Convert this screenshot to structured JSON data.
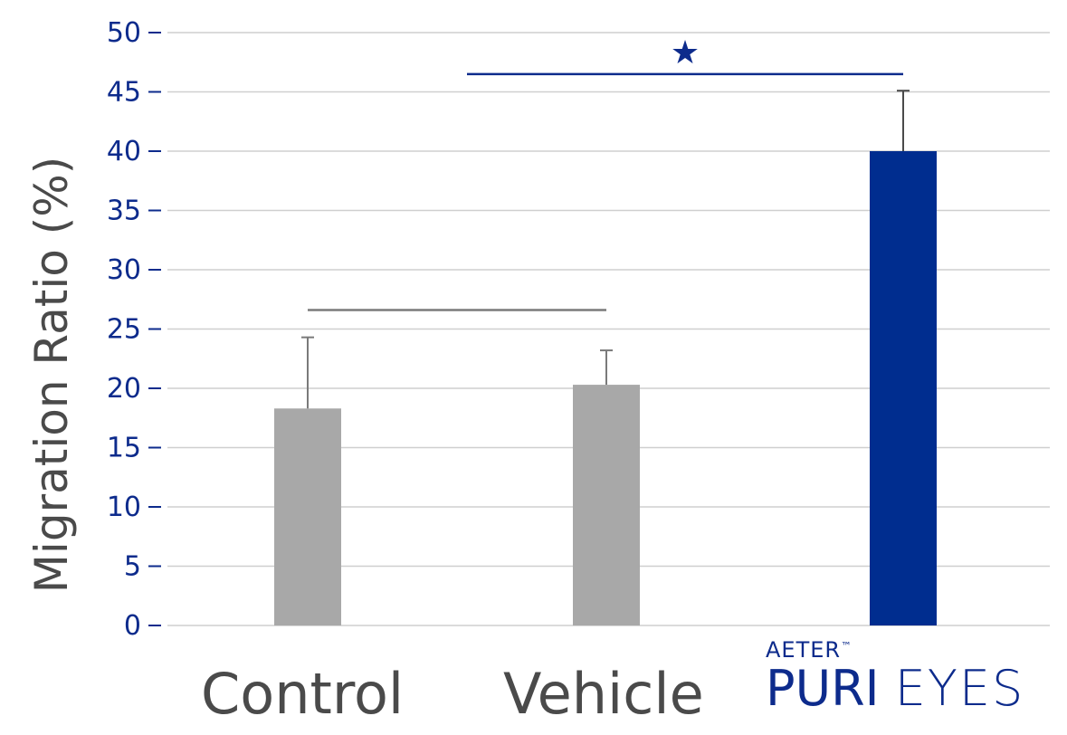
{
  "chart_data": {
    "type": "bar",
    "categories": [
      "Control",
      "Vehicle",
      "AETER PURI EYES"
    ],
    "values": [
      18.3,
      20.3,
      40.0
    ],
    "error_upper": [
      24.3,
      23.2,
      45.1
    ],
    "ylabel": "Migration Ratio (%)",
    "xlabel": "",
    "title": "",
    "ylim": [
      0,
      50
    ],
    "yticks": [
      0,
      5,
      10,
      15,
      20,
      25,
      30,
      35,
      40,
      45,
      50
    ],
    "grid": true,
    "significance": [
      {
        "from": 0,
        "to": 1,
        "marker": "",
        "color": "#7a7a7a",
        "y": 26.6
      },
      {
        "from": 1,
        "to": 2,
        "marker": "★",
        "color": "#0d2b8c",
        "y": 46.5
      }
    ],
    "colors": {
      "bars": [
        "#a8a8a8",
        "#a8a8a8",
        "#002d8f"
      ],
      "axis_text": "#0d2b8c",
      "grid": "#cfcfcf"
    }
  },
  "labels": {
    "control": "Control",
    "vehicle": "Vehicle",
    "brand_top": "AETER",
    "brand_tm": "™",
    "brand_main_1": "PURI",
    "brand_main_2": "EYES"
  }
}
